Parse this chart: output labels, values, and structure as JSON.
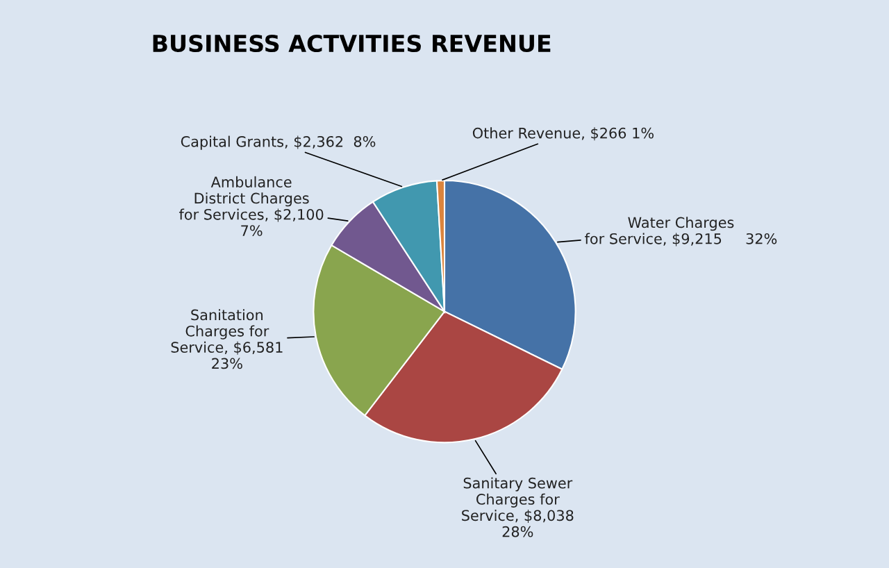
{
  "chart_data": {
    "type": "pie",
    "title": "BUSINESS ACTVITIES REVENUE",
    "categories": [
      "Water Charges\nfor Service",
      "Sanitary Sewer\nCharges for\nService",
      "Sanitation\nCharges for\nService",
      "Ambulance\nDistrict Charges\nfor Services",
      "Capital Grants",
      "Other Revenue"
    ],
    "values": [
      9215,
      8038,
      6581,
      2100,
      2362,
      266
    ],
    "value_labels": [
      "$9,215     32%",
      "$8,038\n28%",
      "$6,581\n23%",
      "$2,100\n7%",
      "$2,362  8%",
      "$266 1%"
    ],
    "colors": [
      "#4572a7",
      "#aa4643",
      "#89a54e",
      "#71588f",
      "#4198af",
      "#db843d"
    ],
    "legend": false
  }
}
